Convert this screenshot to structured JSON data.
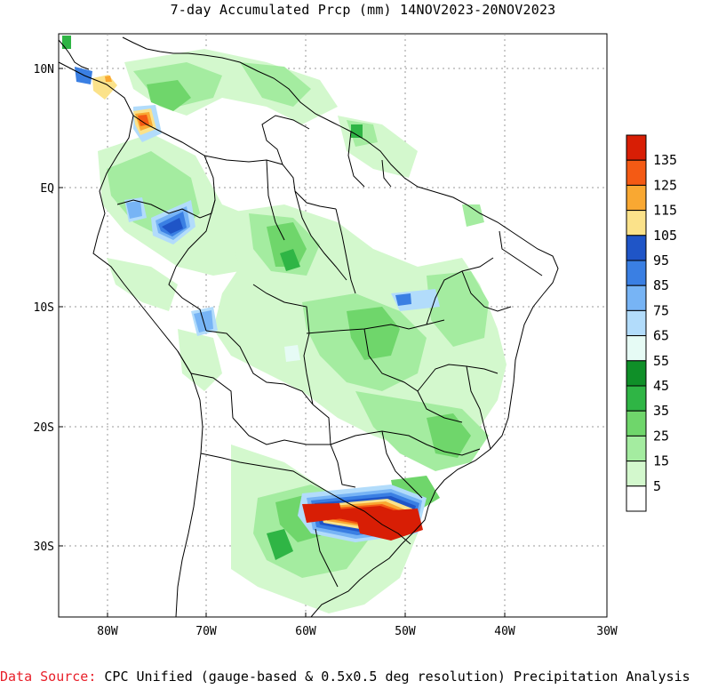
{
  "title": "7-day Accumulated Prcp (mm) 14NOV2023-20NOV2023",
  "lat_ticks": [
    "10N",
    "EQ",
    "10S",
    "20S",
    "30S"
  ],
  "lon_ticks": [
    "80W",
    "70W",
    "60W",
    "50W",
    "40W",
    "30W"
  ],
  "legend": {
    "labels": [
      "135",
      "125",
      "115",
      "105",
      "95",
      "85",
      "75",
      "65",
      "55",
      "45",
      "35",
      "25",
      "15",
      "5"
    ],
    "colors": [
      "#d81e05",
      "#f45a14",
      "#f9a832",
      "#fbe28a",
      "#1f55c7",
      "#3a7fe3",
      "#77b4f5",
      "#b2dcfb",
      "#e6fbf5",
      "#0f8f28",
      "#2fb545",
      "#6fd66b",
      "#a4eca0",
      "#d3f8cd",
      "#ffffff"
    ]
  },
  "source": {
    "lead": "Data Source:",
    "text": " CPC Unified (gauge-based & 0.5x0.5 deg resolution) Precipitation Analysis"
  }
}
